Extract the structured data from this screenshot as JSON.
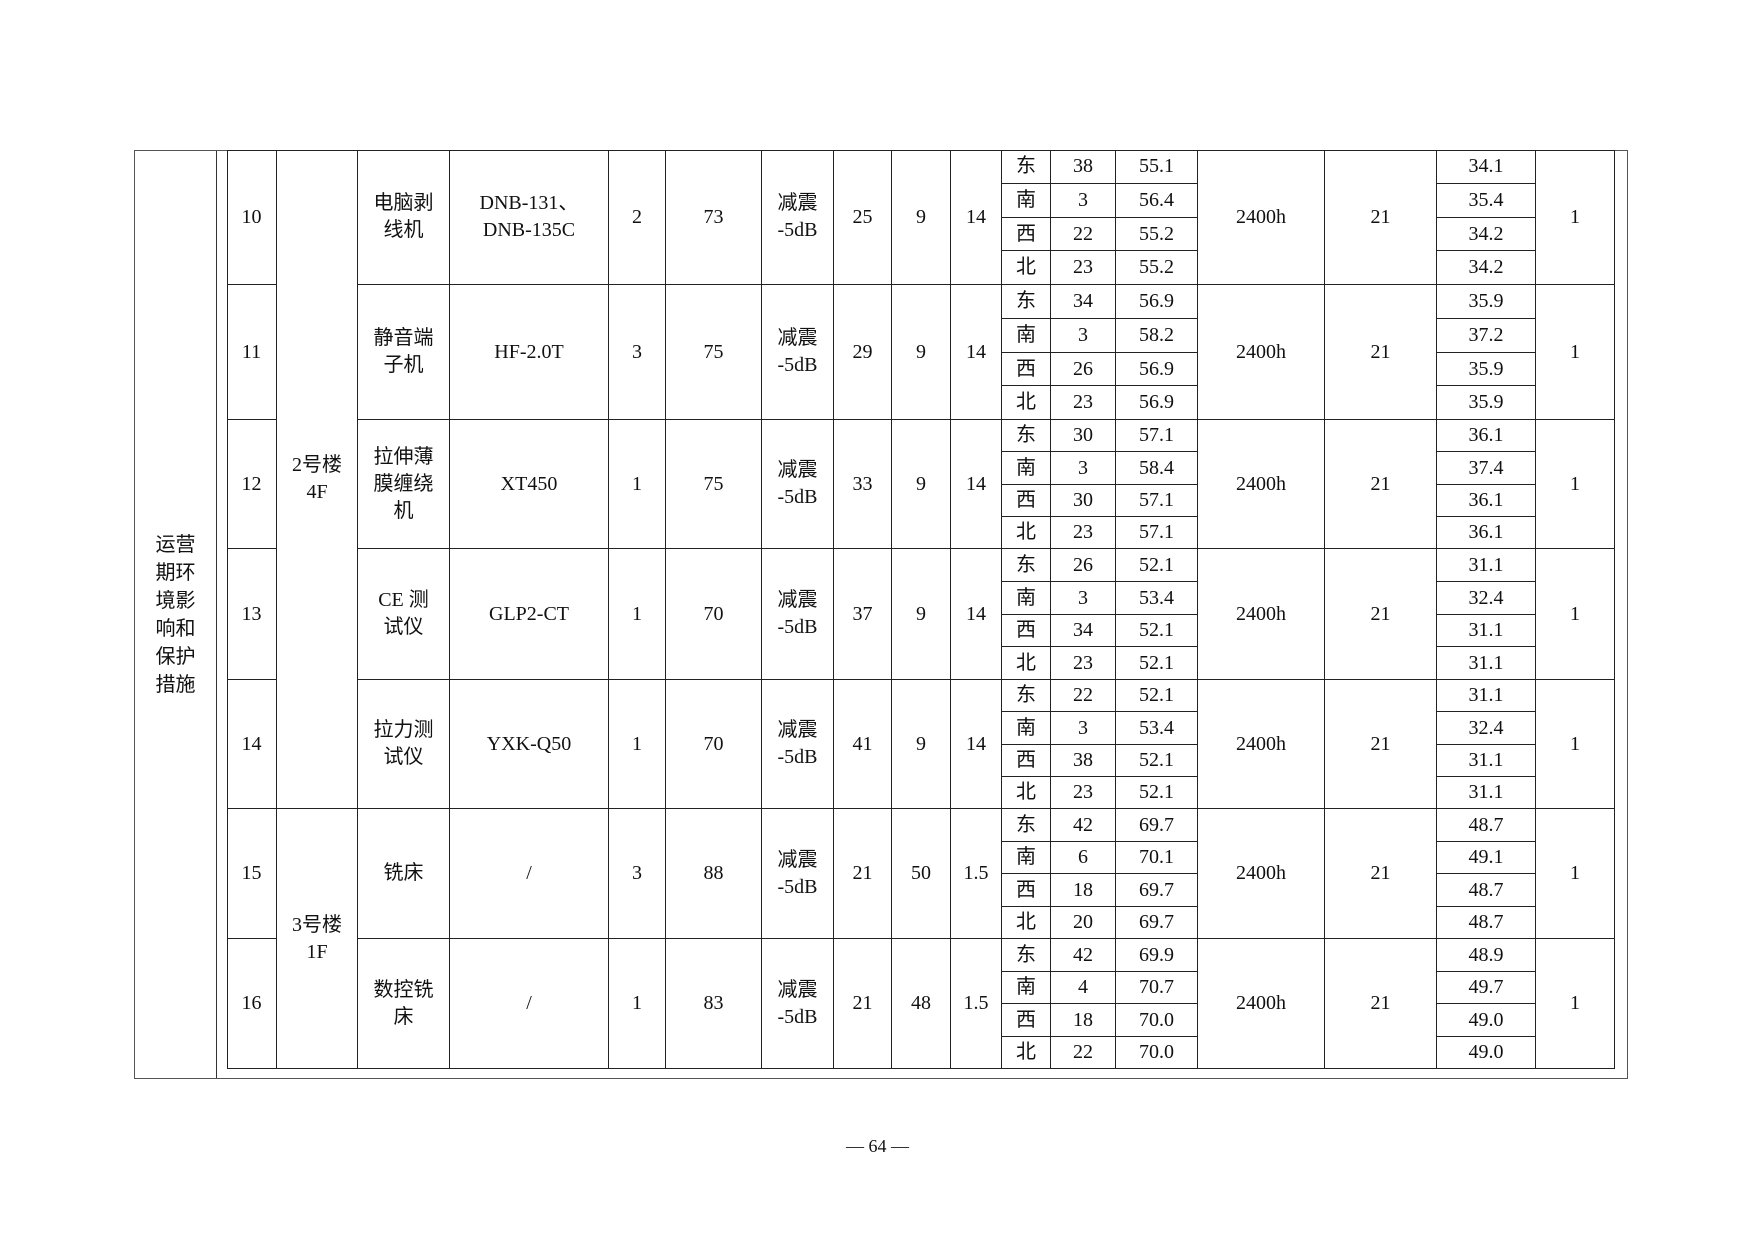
{
  "side_label": "运营期环境影响和保护措施",
  "groups": [
    {
      "building": "2号楼\n4F",
      "rows": [
        0,
        1,
        2,
        3,
        4
      ]
    },
    {
      "building": "3号楼\n1F",
      "rows": [
        5,
        6
      ]
    }
  ],
  "rows": [
    {
      "no": "10",
      "name": "电脑剥\n线机",
      "model": "DNB-131、\nDNB-135C",
      "qty": "2",
      "source_db": "73",
      "measure": "减震\n-5dB",
      "x": "25",
      "y": "9",
      "z": "14",
      "time": "2400h",
      "col_21": "21",
      "last": "1",
      "dirs": [
        {
          "dir": "东",
          "dist": "38",
          "value": "55.1",
          "result": "34.1"
        },
        {
          "dir": "南",
          "dist": "3",
          "value": "56.4",
          "result": "35.4"
        },
        {
          "dir": "西",
          "dist": "22",
          "value": "55.2",
          "result": "34.2"
        },
        {
          "dir": "北",
          "dist": "23",
          "value": "55.2",
          "result": "34.2"
        }
      ]
    },
    {
      "no": "11",
      "name": "静音端\n子机",
      "model": "HF-2.0T",
      "qty": "3",
      "source_db": "75",
      "measure": "减震\n-5dB",
      "x": "29",
      "y": "9",
      "z": "14",
      "time": "2400h",
      "col_21": "21",
      "last": "1",
      "dirs": [
        {
          "dir": "东",
          "dist": "34",
          "value": "56.9",
          "result": "35.9"
        },
        {
          "dir": "南",
          "dist": "3",
          "value": "58.2",
          "result": "37.2"
        },
        {
          "dir": "西",
          "dist": "26",
          "value": "56.9",
          "result": "35.9"
        },
        {
          "dir": "北",
          "dist": "23",
          "value": "56.9",
          "result": "35.9"
        }
      ]
    },
    {
      "no": "12",
      "name": "拉伸薄\n膜缠绕\n机",
      "model": "XT450",
      "qty": "1",
      "source_db": "75",
      "measure": "减震\n-5dB",
      "x": "33",
      "y": "9",
      "z": "14",
      "time": "2400h",
      "col_21": "21",
      "last": "1",
      "dirs": [
        {
          "dir": "东",
          "dist": "30",
          "value": "57.1",
          "result": "36.1"
        },
        {
          "dir": "南",
          "dist": "3",
          "value": "58.4",
          "result": "37.4"
        },
        {
          "dir": "西",
          "dist": "30",
          "value": "57.1",
          "result": "36.1"
        },
        {
          "dir": "北",
          "dist": "23",
          "value": "57.1",
          "result": "36.1"
        }
      ]
    },
    {
      "no": "13",
      "name": "CE 测\n试仪",
      "model": "GLP2-CT",
      "qty": "1",
      "source_db": "70",
      "measure": "减震\n-5dB",
      "x": "37",
      "y": "9",
      "z": "14",
      "time": "2400h",
      "col_21": "21",
      "last": "1",
      "dirs": [
        {
          "dir": "东",
          "dist": "26",
          "value": "52.1",
          "result": "31.1"
        },
        {
          "dir": "南",
          "dist": "3",
          "value": "53.4",
          "result": "32.4"
        },
        {
          "dir": "西",
          "dist": "34",
          "value": "52.1",
          "result": "31.1"
        },
        {
          "dir": "北",
          "dist": "23",
          "value": "52.1",
          "result": "31.1"
        }
      ]
    },
    {
      "no": "14",
      "name": "拉力测\n试仪",
      "model": "YXK-Q50",
      "qty": "1",
      "source_db": "70",
      "measure": "减震\n-5dB",
      "x": "41",
      "y": "9",
      "z": "14",
      "time": "2400h",
      "col_21": "21",
      "last": "1",
      "dirs": [
        {
          "dir": "东",
          "dist": "22",
          "value": "52.1",
          "result": "31.1"
        },
        {
          "dir": "南",
          "dist": "3",
          "value": "53.4",
          "result": "32.4"
        },
        {
          "dir": "西",
          "dist": "38",
          "value": "52.1",
          "result": "31.1"
        },
        {
          "dir": "北",
          "dist": "23",
          "value": "52.1",
          "result": "31.1"
        }
      ]
    },
    {
      "no": "15",
      "name": "铣床",
      "model": "/",
      "qty": "3",
      "source_db": "88",
      "measure": "减震\n-5dB",
      "x": "21",
      "y": "50",
      "z": "1.5",
      "time": "2400h",
      "col_21": "21",
      "last": "1",
      "dirs": [
        {
          "dir": "东",
          "dist": "42",
          "value": "69.7",
          "result": "48.7"
        },
        {
          "dir": "南",
          "dist": "6",
          "value": "70.1",
          "result": "49.1"
        },
        {
          "dir": "西",
          "dist": "18",
          "value": "69.7",
          "result": "48.7"
        },
        {
          "dir": "北",
          "dist": "20",
          "value": "69.7",
          "result": "48.7"
        }
      ]
    },
    {
      "no": "16",
      "name": "数控铣\n床",
      "model": "/",
      "qty": "1",
      "source_db": "83",
      "measure": "减震\n-5dB",
      "x": "21",
      "y": "48",
      "z": "1.5",
      "time": "2400h",
      "col_21": "21",
      "last": "1",
      "dirs": [
        {
          "dir": "东",
          "dist": "42",
          "value": "69.9",
          "result": "48.9"
        },
        {
          "dir": "南",
          "dist": "4",
          "value": "70.7",
          "result": "49.7"
        },
        {
          "dir": "西",
          "dist": "18",
          "value": "70.0",
          "result": "49.0"
        },
        {
          "dir": "北",
          "dist": "22",
          "value": "70.0",
          "result": "49.0"
        }
      ]
    }
  ],
  "page_number": "— 64 —"
}
